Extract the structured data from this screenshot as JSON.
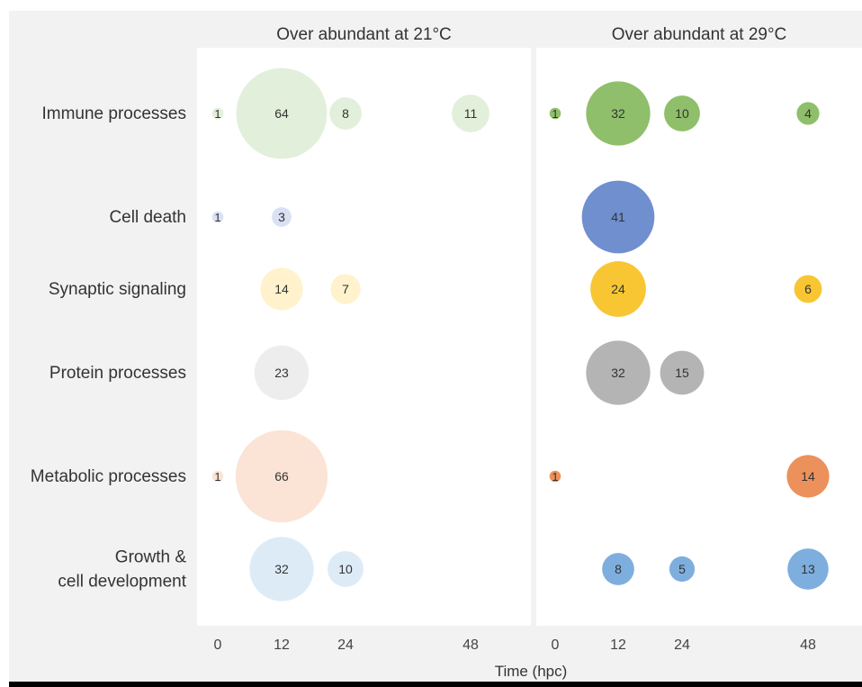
{
  "chart_data": {
    "type": "bubble",
    "panels": [
      {
        "id": "p21",
        "title": "Over abundant at 21°C",
        "shade": "light"
      },
      {
        "id": "p29",
        "title": "Over abundant at 29°C",
        "shade": "dark"
      }
    ],
    "categories": [
      "Immune processes",
      "Cell death",
      "Synaptic signaling",
      "Protein processes",
      "Metabolic processes",
      "Growth &\ncell development"
    ],
    "x_ticks": [
      0,
      12,
      24,
      48
    ],
    "xlabel": "Time (hpc)",
    "colors": {
      "Immune processes": {
        "light": "#e2efda",
        "dark": "#8fbf6a"
      },
      "Cell death": {
        "light": "#dae1f3",
        "dark": "#6f8fcf"
      },
      "Synaptic signaling": {
        "light": "#fff2cc",
        "dark": "#f7c632"
      },
      "Protein processes": {
        "light": "#ededed",
        "dark": "#b4b4b4"
      },
      "Metabolic processes": {
        "light": "#fbe4d5",
        "dark": "#ec915b"
      },
      "Growth &\ncell development": {
        "light": "#ddebf7",
        "dark": "#7eaede"
      }
    },
    "series": [
      {
        "panel": "p21",
        "category": "Immune processes",
        "points": [
          [
            0,
            1
          ],
          [
            12,
            64
          ],
          [
            24,
            8
          ],
          [
            48,
            11
          ]
        ]
      },
      {
        "panel": "p21",
        "category": "Cell death",
        "points": [
          [
            0,
            1
          ],
          [
            12,
            3
          ]
        ]
      },
      {
        "panel": "p21",
        "category": "Synaptic signaling",
        "points": [
          [
            12,
            14
          ],
          [
            24,
            7
          ]
        ]
      },
      {
        "panel": "p21",
        "category": "Protein processes",
        "points": [
          [
            12,
            23
          ]
        ]
      },
      {
        "panel": "p21",
        "category": "Metabolic processes",
        "points": [
          [
            0,
            1
          ],
          [
            12,
            66
          ]
        ]
      },
      {
        "panel": "p21",
        "category": "Growth &\ncell development",
        "points": [
          [
            12,
            32
          ],
          [
            24,
            10
          ]
        ]
      },
      {
        "panel": "p29",
        "category": "Immune processes",
        "points": [
          [
            0,
            1
          ],
          [
            12,
            32
          ],
          [
            24,
            10
          ],
          [
            48,
            4
          ]
        ]
      },
      {
        "panel": "p29",
        "category": "Cell death",
        "points": [
          [
            12,
            41
          ]
        ]
      },
      {
        "panel": "p29",
        "category": "Synaptic signaling",
        "points": [
          [
            12,
            24
          ],
          [
            48,
            6
          ]
        ]
      },
      {
        "panel": "p29",
        "category": "Protein processes",
        "points": [
          [
            12,
            32
          ],
          [
            24,
            15
          ]
        ]
      },
      {
        "panel": "p29",
        "category": "Metabolic processes",
        "points": [
          [
            0,
            1
          ],
          [
            48,
            14
          ]
        ]
      },
      {
        "panel": "p29",
        "category": "Growth &\ncell development",
        "points": [
          [
            12,
            8
          ],
          [
            24,
            5
          ],
          [
            48,
            13
          ]
        ]
      }
    ],
    "grid": false,
    "legend": "none"
  }
}
